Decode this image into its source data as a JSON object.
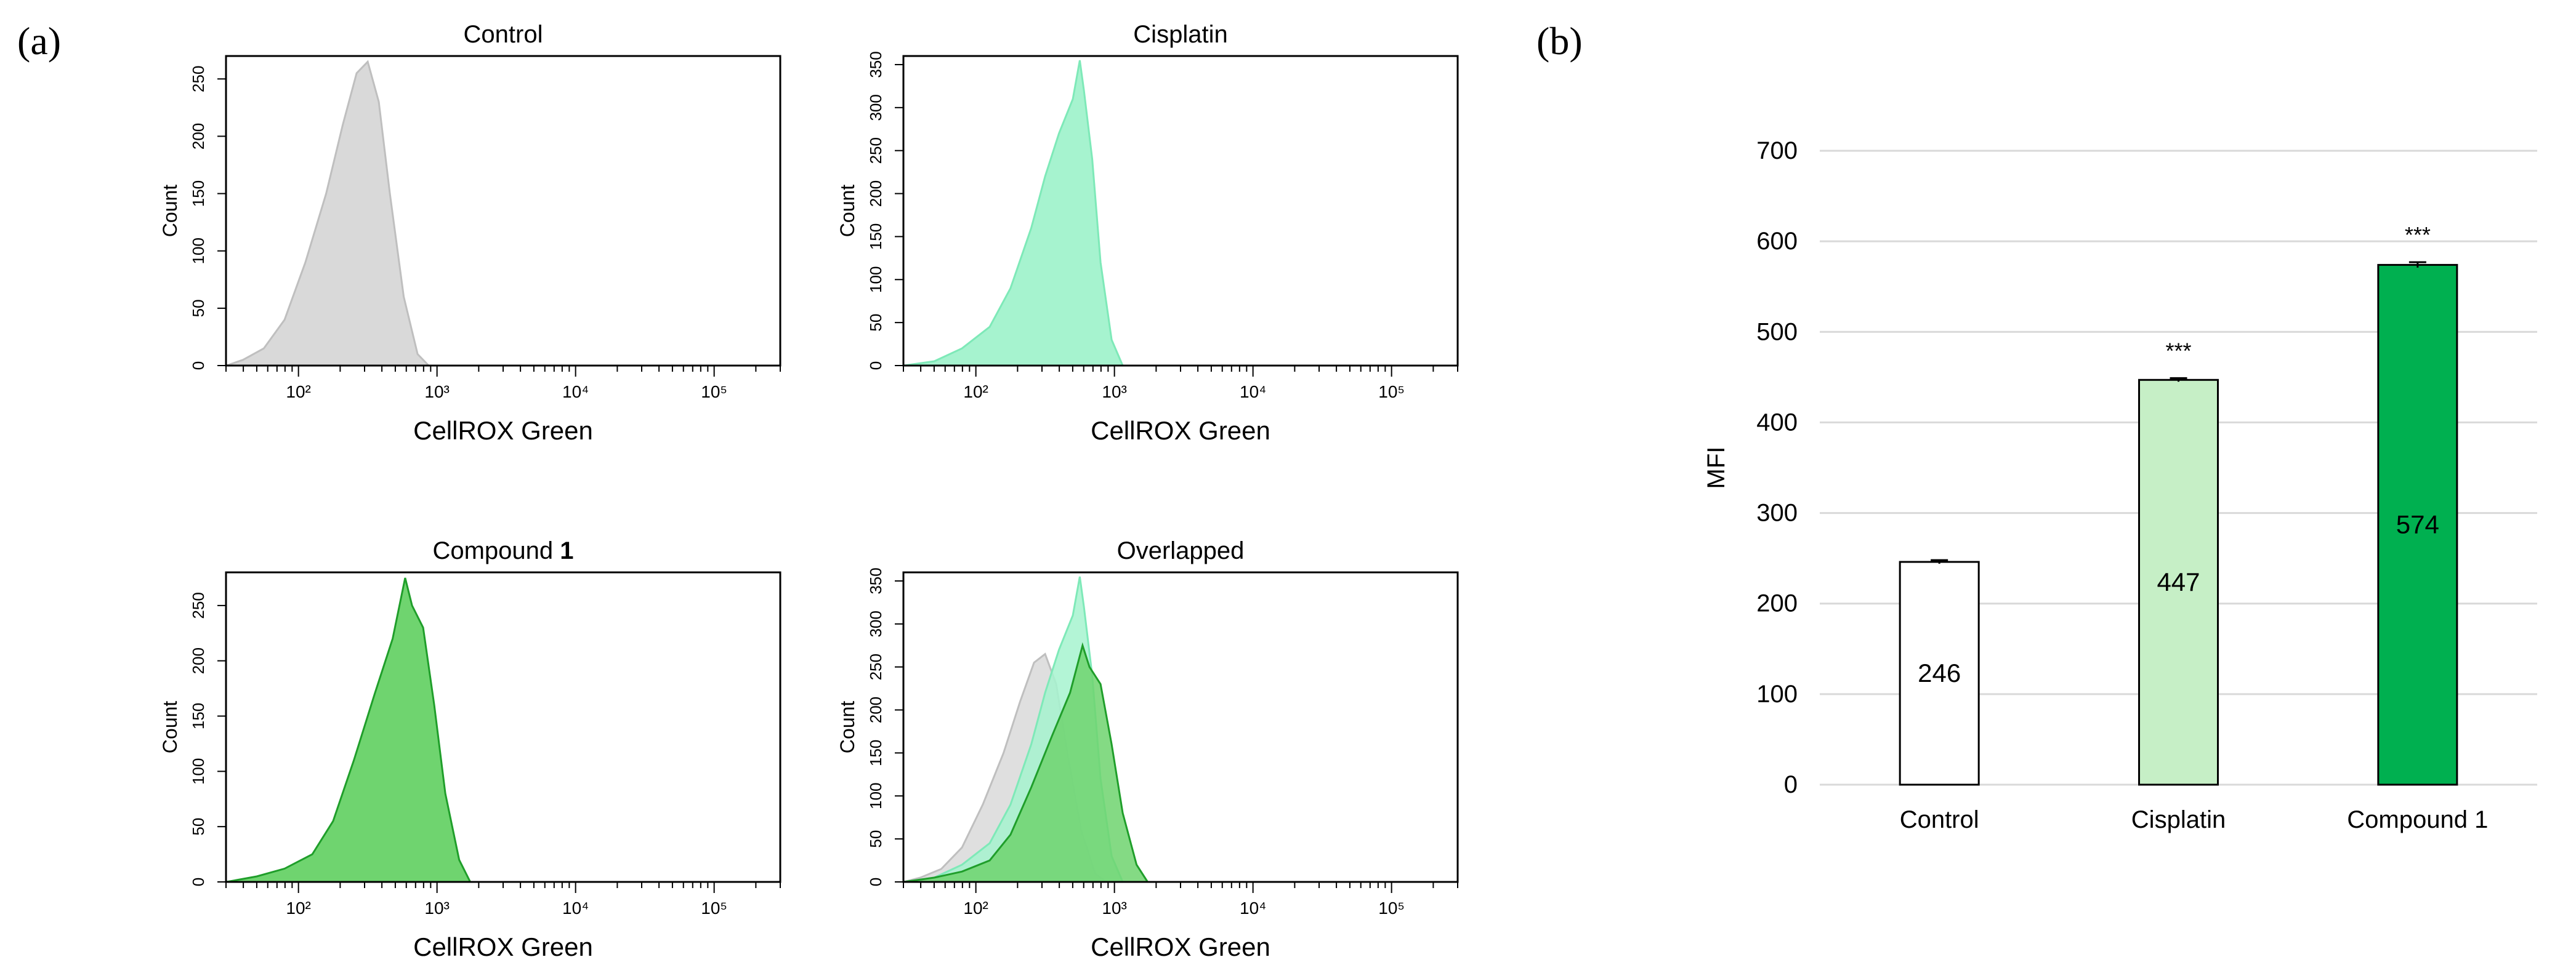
{
  "panel_labels": {
    "a": "(a)",
    "b": "(b)"
  },
  "colors": {
    "control_fill": "#d9d9d9",
    "control_line": "#bfbfbf",
    "cisplatin_fill": "#a6f3cf",
    "cisplatin_line": "#7ee9b8",
    "compound_fill": "#6fd46f",
    "compound_line": "#1f9e2a",
    "bar_control": "#ffffff",
    "bar_cisplatin": "#c6efc6",
    "bar_compound": "#00b050"
  },
  "chart_data": [
    {
      "type": "area",
      "panel": "a",
      "title": "Control",
      "xlabel": "CellROX Green",
      "ylabel": "Count",
      "xscale": "log",
      "xlim": [
        30,
        300000
      ],
      "ylim": [
        0,
        270
      ],
      "xticks": [
        "10²",
        "10³",
        "10⁴",
        "10⁵"
      ],
      "yticks": [
        "0",
        "50",
        "100",
        "150",
        "200",
        "250"
      ],
      "series": [
        {
          "name": "Control",
          "color": "control",
          "x_log": [
            1.48,
            1.6,
            1.75,
            1.9,
            2.05,
            2.2,
            2.32,
            2.42,
            2.5,
            2.58,
            2.66,
            2.76,
            2.86,
            2.94
          ],
          "y": [
            0,
            5,
            15,
            40,
            90,
            150,
            210,
            255,
            265,
            230,
            150,
            60,
            10,
            0
          ]
        }
      ]
    },
    {
      "type": "area",
      "panel": "a",
      "title": "Cisplatin",
      "xlabel": "CellROX Green",
      "ylabel": "Count",
      "xscale": "log",
      "xlim": [
        30,
        300000
      ],
      "ylim": [
        0,
        360
      ],
      "xticks": [
        "10²",
        "10³",
        "10⁴",
        "10⁵"
      ],
      "yticks": [
        "0",
        "50",
        "100",
        "150",
        "200",
        "250",
        "300",
        "350"
      ],
      "series": [
        {
          "name": "Cisplatin",
          "color": "cisplatin",
          "x_log": [
            1.48,
            1.7,
            1.9,
            2.1,
            2.25,
            2.4,
            2.5,
            2.6,
            2.7,
            2.75,
            2.78,
            2.84,
            2.9,
            2.98,
            3.06
          ],
          "y": [
            0,
            5,
            20,
            45,
            90,
            160,
            220,
            270,
            310,
            355,
            320,
            240,
            120,
            30,
            0
          ]
        }
      ]
    },
    {
      "type": "area",
      "panel": "a",
      "title": "Compound 1",
      "xlabel": "CellROX Green",
      "ylabel": "Count",
      "xscale": "log",
      "xlim": [
        30,
        300000
      ],
      "ylim": [
        0,
        280
      ],
      "xticks": [
        "10²",
        "10³",
        "10⁴",
        "10⁵"
      ],
      "yticks": [
        "0",
        "50",
        "100",
        "150",
        "200",
        "250"
      ],
      "series": [
        {
          "name": "Compound 1",
          "color": "compound",
          "x_log": [
            1.48,
            1.7,
            1.9,
            2.1,
            2.25,
            2.4,
            2.55,
            2.68,
            2.77,
            2.82,
            2.9,
            2.98,
            3.06,
            3.16,
            3.24
          ],
          "y": [
            0,
            5,
            12,
            25,
            55,
            110,
            170,
            220,
            275,
            250,
            230,
            160,
            80,
            20,
            0
          ]
        }
      ]
    },
    {
      "type": "area",
      "panel": "a",
      "title": "Overlapped",
      "xlabel": "CellROX Green",
      "ylabel": "Count",
      "xscale": "log",
      "xlim": [
        30,
        300000
      ],
      "ylim": [
        0,
        360
      ],
      "xticks": [
        "10²",
        "10³",
        "10⁴",
        "10⁵"
      ],
      "yticks": [
        "0",
        "50",
        "100",
        "150",
        "200",
        "250",
        "300",
        "350"
      ],
      "series": [
        {
          "name": "Control",
          "color": "control",
          "x_log": [
            1.48,
            1.6,
            1.75,
            1.9,
            2.05,
            2.2,
            2.32,
            2.42,
            2.5,
            2.58,
            2.66,
            2.76,
            2.86,
            2.94
          ],
          "y": [
            0,
            5,
            15,
            40,
            90,
            150,
            210,
            255,
            265,
            230,
            150,
            60,
            10,
            0
          ]
        },
        {
          "name": "Cisplatin",
          "color": "cisplatin",
          "x_log": [
            1.48,
            1.7,
            1.9,
            2.1,
            2.25,
            2.4,
            2.5,
            2.6,
            2.7,
            2.75,
            2.78,
            2.84,
            2.9,
            2.98,
            3.06
          ],
          "y": [
            0,
            5,
            20,
            45,
            90,
            160,
            220,
            270,
            310,
            355,
            320,
            240,
            120,
            30,
            0
          ]
        },
        {
          "name": "Compound 1",
          "color": "compound",
          "x_log": [
            1.48,
            1.7,
            1.9,
            2.1,
            2.25,
            2.4,
            2.55,
            2.68,
            2.77,
            2.82,
            2.9,
            2.98,
            3.06,
            3.16,
            3.24
          ],
          "y": [
            0,
            5,
            12,
            25,
            55,
            110,
            170,
            220,
            275,
            250,
            230,
            160,
            80,
            20,
            0
          ]
        }
      ]
    },
    {
      "type": "bar",
      "panel": "b",
      "title": "",
      "xlabel": "",
      "ylabel": "MFI",
      "ylim": [
        0,
        700
      ],
      "yticks": [
        "0",
        "100",
        "200",
        "300",
        "400",
        "500",
        "600",
        "700"
      ],
      "grid": true,
      "categories": [
        "Control",
        "Cisplatin",
        "Compound 1"
      ],
      "values": [
        246,
        447,
        574
      ],
      "value_labels": [
        "246",
        "447",
        "574"
      ],
      "errors": [
        2,
        2,
        3
      ],
      "significance": [
        "",
        "***",
        "***"
      ]
    }
  ]
}
